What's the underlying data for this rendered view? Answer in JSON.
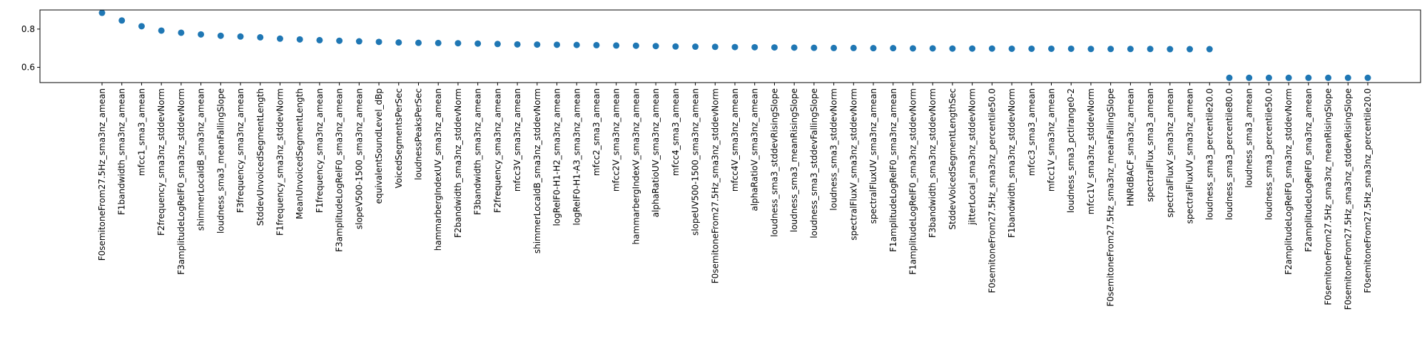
{
  "chart_data": {
    "type": "scatter",
    "title": "",
    "xlabel": "",
    "ylabel": "",
    "ylim": [
      0.52,
      0.9
    ],
    "yticks": [
      0.6,
      0.8
    ],
    "ytick_labels": [
      "0.6",
      "0.8"
    ],
    "grid": false,
    "marker_color": "#1f77b4",
    "categories": [
      "F0semitoneFrom27.5Hz_sma3nz_amean",
      "F1bandwidth_sma3nz_amean",
      "mfcc1_sma3_amean",
      "F2frequency_sma3nz_stddevNorm",
      "F3amplitudeLogRelF0_sma3nz_stddevNorm",
      "shimmerLocaldB_sma3nz_amean",
      "loudness_sma3_meanFallingSlope",
      "F3frequency_sma3nz_amean",
      "StddevUnvoicedSegmentLength",
      "F1frequency_sma3nz_stddevNorm",
      "MeanUnvoicedSegmentLength",
      "F1frequency_sma3nz_amean",
      "F3amplitudeLogRelF0_sma3nz_amean",
      "slopeV500-1500_sma3nz_amean",
      "equivalentSoundLevel_dBp",
      "VoicedSegmentsPerSec",
      "loudnessPeaksPerSec",
      "hammarbergIndexUV_sma3nz_amean",
      "F2bandwidth_sma3nz_stddevNorm",
      "F3bandwidth_sma3nz_amean",
      "F2frequency_sma3nz_amean",
      "mfcc3V_sma3nz_amean",
      "shimmerLocaldB_sma3nz_stddevNorm",
      "logRelF0-H1-H2_sma3nz_amean",
      "logRelF0-H1-A3_sma3nz_amean",
      "mfcc2_sma3_amean",
      "mfcc2V_sma3nz_amean",
      "hammarbergIndexV_sma3nz_amean",
      "alphaRatioUV_sma3nz_amean",
      "mfcc4_sma3_amean",
      "slopeUV500-1500_sma3nz_amean",
      "F0semitoneFrom27.5Hz_sma3nz_stddevNorm",
      "mfcc4V_sma3nz_amean",
      "alphaRatioV_sma3nz_amean",
      "loudness_sma3_stddevRisingSlope",
      "loudness_sma3_meanRisingSlope",
      "loudness_sma3_stddevFallingSlope",
      "loudness_sma3_stddevNorm",
      "spectralFluxV_sma3nz_stddevNorm",
      "spectralFluxUV_sma3nz_amean",
      "F1amplitudeLogRelF0_sma3nz_amean",
      "F1amplitudeLogRelF0_sma3nz_stddevNorm",
      "F3bandwidth_sma3nz_stddevNorm",
      "StddevVoicedSegmentLengthSec",
      "jitterLocal_sma3nz_stddevNorm",
      "F0semitoneFrom27.5Hz_sma3nz_percentile50.0",
      "F1bandwidth_sma3nz_stddevNorm",
      "mfcc3_sma3_amean",
      "mfcc1V_sma3nz_amean",
      "loudness_sma3_pctlrange0-2",
      "mfcc1V_sma3nz_stddevNorm",
      "F0semitoneFrom27.5Hz_sma3nz_meanFallingSlope",
      "HNRdBACF_sma3nz_amean",
      "spectralFlux_sma3_amean",
      "spectralFluxV_sma3nz_amean",
      "spectralFluxUV_sma3nz_amean",
      "loudness_sma3_percentile20.0",
      "loudness_sma3_percentile80.0",
      "loudness_sma3_amean",
      "loudness_sma3_percentile50.0",
      "F2amplitudeLogRelF0_sma3nz_stddevNorm",
      "F2amplitudeLogRelF0_sma3nz_amean",
      "F0semitoneFrom27.5Hz_sma3nz_meanRisingSlope",
      "F0semitoneFrom27.5Hz_sma3nz_stddevRisingSlope",
      "F0semitoneFrom27.5Hz_sma3nz_percentile20.0"
    ],
    "values": [
      0.885,
      0.845,
      0.815,
      0.792,
      0.781,
      0.772,
      0.765,
      0.761,
      0.757,
      0.75,
      0.746,
      0.742,
      0.739,
      0.736,
      0.733,
      0.73,
      0.728,
      0.727,
      0.726,
      0.724,
      0.722,
      0.72,
      0.719,
      0.718,
      0.717,
      0.716,
      0.714,
      0.713,
      0.711,
      0.709,
      0.708,
      0.707,
      0.706,
      0.705,
      0.704,
      0.703,
      0.702,
      0.701,
      0.701,
      0.7,
      0.7,
      0.699,
      0.699,
      0.698,
      0.698,
      0.698,
      0.697,
      0.697,
      0.697,
      0.697,
      0.696,
      0.696,
      0.696,
      0.696,
      0.695,
      0.695,
      0.695,
      0.545,
      0.545,
      0.545,
      0.545,
      0.545,
      0.545,
      0.545,
      0.545
    ]
  }
}
